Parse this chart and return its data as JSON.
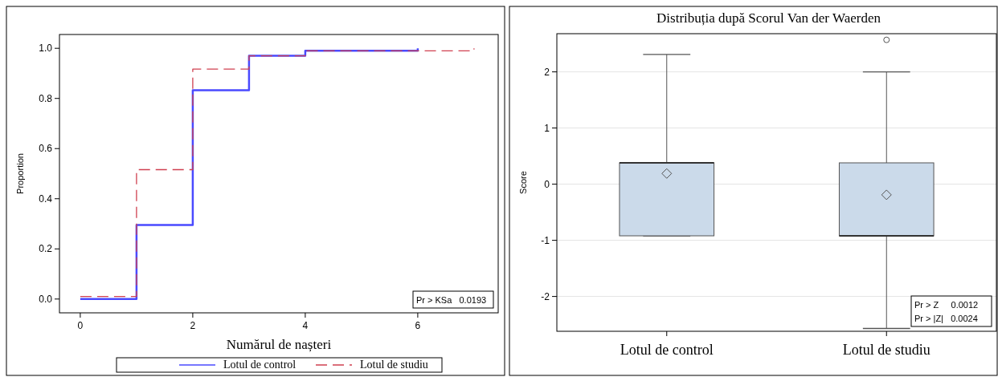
{
  "chart_data": [
    {
      "type": "step",
      "xlabel": "Numărul de nașteri",
      "ylabel": "Proportion",
      "xlim": [
        -0.37,
        7.43
      ],
      "xticks": [
        0,
        2,
        4,
        6
      ],
      "ylim": [
        -0.055,
        1.055
      ],
      "yticks": [
        {
          "value": 0,
          "label": "0.0"
        },
        {
          "value": 0.2,
          "label": "0.2"
        },
        {
          "value": 0.4,
          "label": "0.4"
        },
        {
          "value": 0.6,
          "label": "0.6"
        },
        {
          "value": 0.8,
          "label": "0.8"
        },
        {
          "value": 1,
          "label": "1.0"
        }
      ],
      "legend": "bottom",
      "series": [
        {
          "name": "Lotul de control",
          "color": "#4a4aff",
          "line_style": "solid",
          "x": [
            0,
            1,
            2,
            3,
            4,
            6
          ],
          "values": [
            0,
            0.295,
            0.833,
            0.97,
            0.99,
            1.0
          ]
        },
        {
          "name": "Lotul de studiu",
          "color": "#d04050",
          "line_style": "dashed",
          "x": [
            0,
            1,
            2,
            3,
            4,
            7
          ],
          "values": [
            0.01,
            0.516,
            0.917,
            0.97,
            0.99,
            1.0
          ]
        }
      ],
      "annotations": [
        "Pr > KSa   0.0193"
      ]
    },
    {
      "type": "box",
      "title": "Distribuția după Scorul Van der Waerden",
      "ylabel": "Score",
      "categories": [
        "Lotul de control",
        "Lotul de studiu"
      ],
      "ylim": [
        -2.62,
        2.68
      ],
      "yticks": [
        -2,
        -1,
        0,
        1,
        2
      ],
      "grid": "y",
      "color": "#cbdaea",
      "boxes": [
        {
          "low": -0.92,
          "q1": -0.92,
          "median": 0.38,
          "q3": 0.38,
          "high": 2.31,
          "mean": 0.19
        },
        {
          "low": -2.57,
          "q1": -0.92,
          "median": -0.92,
          "q3": 0.38,
          "high": 2.0,
          "mean": -0.19,
          "outliers": [
            2.57
          ]
        }
      ],
      "annotations": [
        "Pr > Z     0.0012",
        "Pr > |Z|   0.0024"
      ]
    }
  ]
}
